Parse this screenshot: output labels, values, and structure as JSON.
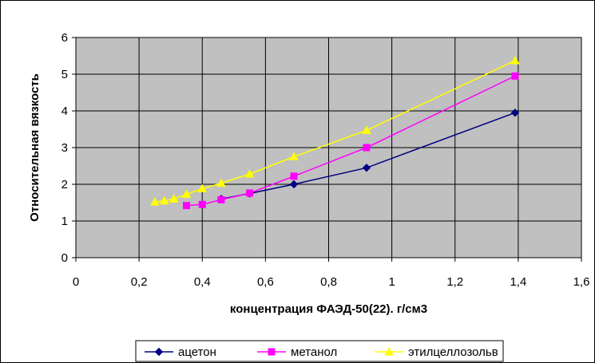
{
  "chart_data": {
    "type": "line",
    "xlabel": "концентрация ФАЭД-50(22). г/см3",
    "ylabel": "Относительная вязкость",
    "xlim": [
      0,
      1.6
    ],
    "ylim": [
      0,
      6
    ],
    "x_ticks": [
      "0",
      "0,2",
      "0,4",
      "0,6",
      "0,8",
      "1",
      "1,2",
      "1,4",
      "1,6"
    ],
    "y_ticks": [
      "0",
      "1",
      "2",
      "3",
      "4",
      "5",
      "6"
    ],
    "grid": true,
    "plot_background": "#c0c0c0",
    "legend_position": "bottom",
    "series": [
      {
        "name": "ацетон",
        "color": "#000080",
        "marker": "diamond",
        "points": [
          [
            0.46,
            1.6
          ],
          [
            0.55,
            1.75
          ],
          [
            0.69,
            2.0
          ],
          [
            0.92,
            2.45
          ],
          [
            1.39,
            3.95
          ]
        ]
      },
      {
        "name": "метанол",
        "color": "#ff00ff",
        "marker": "square",
        "points": [
          [
            0.35,
            1.42
          ],
          [
            0.4,
            1.45
          ],
          [
            0.46,
            1.58
          ],
          [
            0.55,
            1.76
          ],
          [
            0.69,
            2.22
          ],
          [
            0.92,
            3.0
          ],
          [
            1.39,
            4.95
          ]
        ]
      },
      {
        "name": "этилцеллозольв",
        "color": "#ffff00",
        "marker": "triangle",
        "points": [
          [
            0.25,
            1.52
          ],
          [
            0.28,
            1.55
          ],
          [
            0.31,
            1.6
          ],
          [
            0.35,
            1.73
          ],
          [
            0.4,
            1.88
          ],
          [
            0.46,
            2.03
          ],
          [
            0.55,
            2.28
          ],
          [
            0.69,
            2.75
          ],
          [
            0.92,
            3.47
          ],
          [
            1.39,
            5.37
          ]
        ]
      }
    ]
  }
}
